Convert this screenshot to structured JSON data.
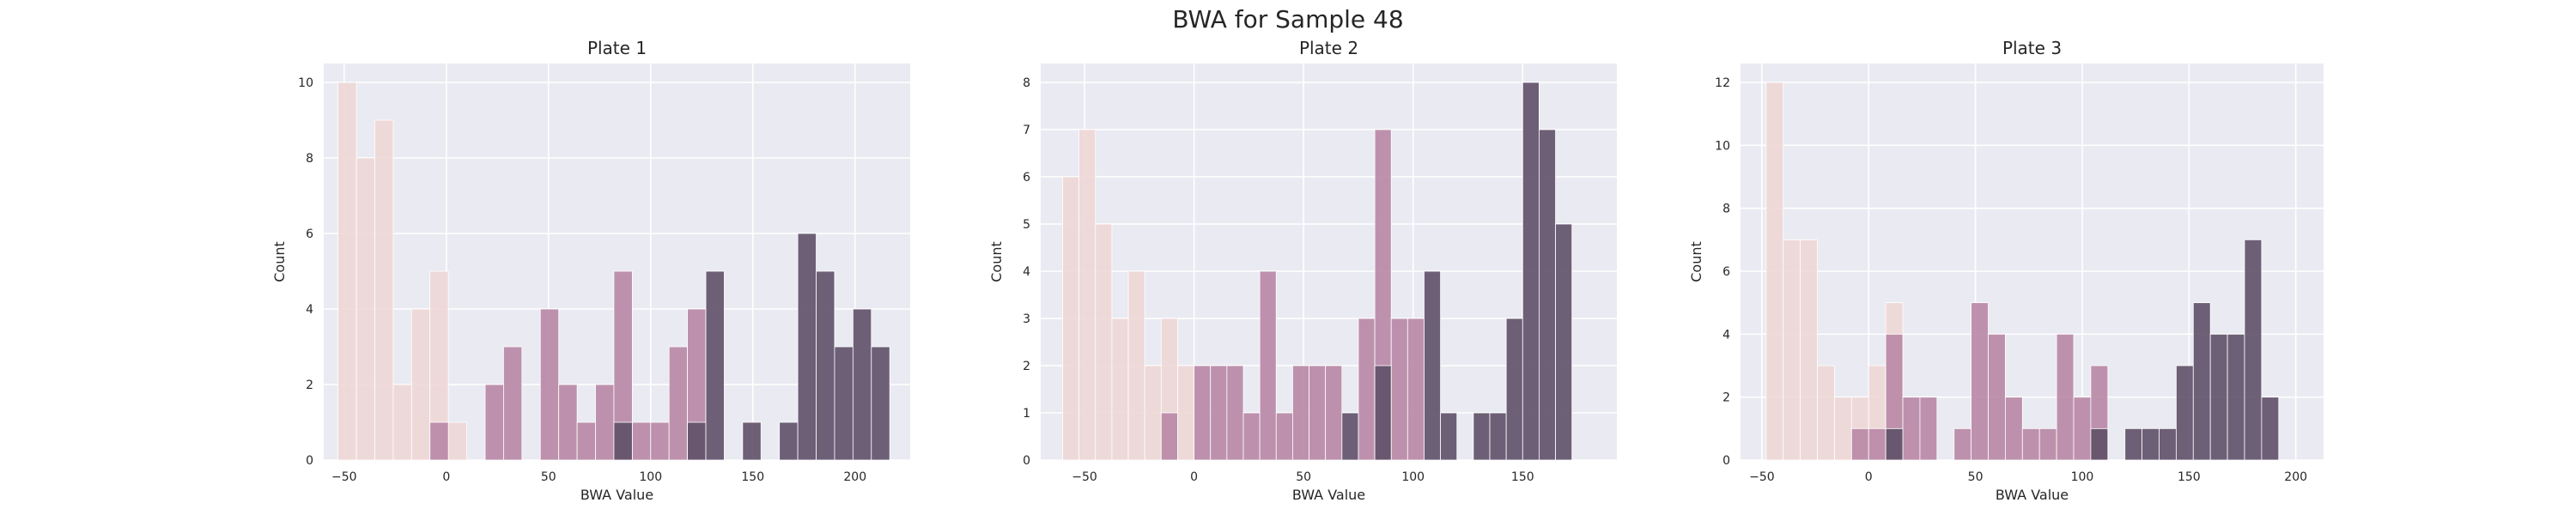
{
  "figure": {
    "suptitle": "BWA for Sample 48"
  },
  "chart_data": [
    {
      "type": "bar",
      "title": "Plate 1",
      "xlabel": "BWA Value",
      "ylabel": "Count",
      "xlim": [
        -60,
        227
      ],
      "ylim": [
        0,
        10.5
      ],
      "xticks": [
        -50,
        0,
        50,
        100,
        150,
        200
      ],
      "yticks": [
        0,
        2,
        4,
        6,
        8,
        10
      ],
      "grid": true,
      "bars": [
        {
          "x0": -53,
          "x1": -44,
          "y": 10,
          "color": "#eed7d6"
        },
        {
          "x0": -44,
          "x1": -35,
          "y": 8,
          "color": "#eed7d6"
        },
        {
          "x0": -35,
          "x1": -26,
          "y": 9,
          "color": "#eed7d6"
        },
        {
          "x0": -26,
          "x1": -17,
          "y": 2,
          "color": "#eed7d6"
        },
        {
          "x0": -17,
          "x1": -8,
          "y": 4,
          "color": "#eed7d6"
        },
        {
          "x0": -8,
          "x1": 1,
          "y": 5,
          "color": "#eed7d6"
        },
        {
          "x0": 1,
          "x1": 10,
          "y": 1,
          "color": "#eed7d6"
        },
        {
          "x0": -8,
          "x1": 1,
          "y": 1,
          "color": "#b887a5"
        },
        {
          "x0": 19,
          "x1": 28,
          "y": 2,
          "color": "#b887a5"
        },
        {
          "x0": 28,
          "x1": 37,
          "y": 3,
          "color": "#b887a5"
        },
        {
          "x0": 46,
          "x1": 55,
          "y": 4,
          "color": "#b887a5"
        },
        {
          "x0": 55,
          "x1": 64,
          "y": 2,
          "color": "#b887a5"
        },
        {
          "x0": 64,
          "x1": 73,
          "y": 1,
          "color": "#b887a5"
        },
        {
          "x0": 73,
          "x1": 82,
          "y": 2,
          "color": "#b887a5"
        },
        {
          "x0": 82,
          "x1": 91,
          "y": 5,
          "color": "#b887a5"
        },
        {
          "x0": 91,
          "x1": 100,
          "y": 1,
          "color": "#b887a5"
        },
        {
          "x0": 100,
          "x1": 109,
          "y": 1,
          "color": "#b887a5"
        },
        {
          "x0": 109,
          "x1": 118,
          "y": 3,
          "color": "#b887a5"
        },
        {
          "x0": 118,
          "x1": 127,
          "y": 4,
          "color": "#b887a5"
        },
        {
          "x0": 82,
          "x1": 91,
          "y": 1,
          "color": "#5f5068"
        },
        {
          "x0": 118,
          "x1": 127,
          "y": 1,
          "color": "#5f5068"
        },
        {
          "x0": 127,
          "x1": 136,
          "y": 5,
          "color": "#5f5068"
        },
        {
          "x0": 145,
          "x1": 154,
          "y": 1,
          "color": "#5f5068"
        },
        {
          "x0": 163,
          "x1": 172,
          "y": 1,
          "color": "#5f5068"
        },
        {
          "x0": 172,
          "x1": 181,
          "y": 6,
          "color": "#5f5068"
        },
        {
          "x0": 181,
          "x1": 190,
          "y": 5,
          "color": "#5f5068"
        },
        {
          "x0": 190,
          "x1": 199,
          "y": 3,
          "color": "#5f5068"
        },
        {
          "x0": 199,
          "x1": 208,
          "y": 4,
          "color": "#5f5068"
        },
        {
          "x0": 208,
          "x1": 217,
          "y": 3,
          "color": "#5f5068"
        }
      ]
    },
    {
      "type": "bar",
      "title": "Plate 2",
      "xlabel": "BWA Value",
      "ylabel": "Count",
      "xlim": [
        -70,
        193
      ],
      "ylim": [
        0,
        8.4
      ],
      "xticks": [
        -50,
        0,
        50,
        100,
        150
      ],
      "yticks": [
        0,
        1,
        2,
        3,
        4,
        5,
        6,
        7,
        8
      ],
      "grid": true,
      "bars": [
        {
          "x0": -60,
          "x1": -52.5,
          "y": 6,
          "color": "#eed7d6"
        },
        {
          "x0": -52.5,
          "x1": -45,
          "y": 7,
          "color": "#eed7d6"
        },
        {
          "x0": -45,
          "x1": -37.5,
          "y": 5,
          "color": "#eed7d6"
        },
        {
          "x0": -37.5,
          "x1": -30,
          "y": 3,
          "color": "#eed7d6"
        },
        {
          "x0": -30,
          "x1": -22.5,
          "y": 4,
          "color": "#eed7d6"
        },
        {
          "x0": -22.5,
          "x1": -15,
          "y": 2,
          "color": "#eed7d6"
        },
        {
          "x0": -15,
          "x1": -7.5,
          "y": 3,
          "color": "#eed7d6"
        },
        {
          "x0": -7.5,
          "x1": 0,
          "y": 2,
          "color": "#eed7d6"
        },
        {
          "x0": -15,
          "x1": -7.5,
          "y": 1,
          "color": "#b887a5"
        },
        {
          "x0": 0,
          "x1": 7.5,
          "y": 2,
          "color": "#b887a5"
        },
        {
          "x0": 7.5,
          "x1": 15,
          "y": 2,
          "color": "#b887a5"
        },
        {
          "x0": 15,
          "x1": 22.5,
          "y": 2,
          "color": "#b887a5"
        },
        {
          "x0": 22.5,
          "x1": 30,
          "y": 1,
          "color": "#b887a5"
        },
        {
          "x0": 30,
          "x1": 37.5,
          "y": 4,
          "color": "#b887a5"
        },
        {
          "x0": 37.5,
          "x1": 45,
          "y": 1,
          "color": "#b887a5"
        },
        {
          "x0": 45,
          "x1": 52.5,
          "y": 2,
          "color": "#b887a5"
        },
        {
          "x0": 52.5,
          "x1": 60,
          "y": 2,
          "color": "#b887a5"
        },
        {
          "x0": 60,
          "x1": 67.5,
          "y": 2,
          "color": "#b887a5"
        },
        {
          "x0": 75,
          "x1": 82.5,
          "y": 3,
          "color": "#b887a5"
        },
        {
          "x0": 82.5,
          "x1": 90,
          "y": 7,
          "color": "#b887a5"
        },
        {
          "x0": 90,
          "x1": 97.5,
          "y": 3,
          "color": "#b887a5"
        },
        {
          "x0": 97.5,
          "x1": 105,
          "y": 3,
          "color": "#b887a5"
        },
        {
          "x0": 67.5,
          "x1": 75,
          "y": 1,
          "color": "#5f5068"
        },
        {
          "x0": 82.5,
          "x1": 90,
          "y": 2,
          "color": "#5f5068"
        },
        {
          "x0": 105,
          "x1": 112.5,
          "y": 4,
          "color": "#5f5068"
        },
        {
          "x0": 112.5,
          "x1": 120,
          "y": 1,
          "color": "#5f5068"
        },
        {
          "x0": 127.5,
          "x1": 135,
          "y": 1,
          "color": "#5f5068"
        },
        {
          "x0": 135,
          "x1": 142.5,
          "y": 1,
          "color": "#5f5068"
        },
        {
          "x0": 142.5,
          "x1": 150,
          "y": 3,
          "color": "#5f5068"
        },
        {
          "x0": 150,
          "x1": 157.5,
          "y": 8,
          "color": "#5f5068"
        },
        {
          "x0": 157.5,
          "x1": 165,
          "y": 7,
          "color": "#5f5068"
        },
        {
          "x0": 165,
          "x1": 172.5,
          "y": 5,
          "color": "#5f5068"
        }
      ]
    },
    {
      "type": "bar",
      "title": "Plate 3",
      "xlabel": "BWA Value",
      "ylabel": "Count",
      "xlim": [
        -60,
        213
      ],
      "ylim": [
        0,
        12.6
      ],
      "xticks": [
        -50,
        0,
        50,
        100,
        150,
        200
      ],
      "yticks": [
        0,
        2,
        4,
        6,
        8,
        10,
        12
      ],
      "grid": true,
      "bars": [
        {
          "x0": -48,
          "x1": -40,
          "y": 12,
          "color": "#eed7d6"
        },
        {
          "x0": -40,
          "x1": -32,
          "y": 7,
          "color": "#eed7d6"
        },
        {
          "x0": -32,
          "x1": -24,
          "y": 7,
          "color": "#eed7d6"
        },
        {
          "x0": -24,
          "x1": -16,
          "y": 3,
          "color": "#eed7d6"
        },
        {
          "x0": -16,
          "x1": -8,
          "y": 2,
          "color": "#eed7d6"
        },
        {
          "x0": -8,
          "x1": 0,
          "y": 2,
          "color": "#eed7d6"
        },
        {
          "x0": 0,
          "x1": 8,
          "y": 3,
          "color": "#eed7d6"
        },
        {
          "x0": 8,
          "x1": 16,
          "y": 5,
          "color": "#eed7d6"
        },
        {
          "x0": 16,
          "x1": 24,
          "y": 1,
          "color": "#eed7d6"
        },
        {
          "x0": -8,
          "x1": 0,
          "y": 1,
          "color": "#b887a5"
        },
        {
          "x0": 0,
          "x1": 8,
          "y": 1,
          "color": "#b887a5"
        },
        {
          "x0": 8,
          "x1": 16,
          "y": 4,
          "color": "#b887a5"
        },
        {
          "x0": 16,
          "x1": 24,
          "y": 2,
          "color": "#b887a5"
        },
        {
          "x0": 24,
          "x1": 32,
          "y": 2,
          "color": "#b887a5"
        },
        {
          "x0": 40,
          "x1": 48,
          "y": 1,
          "color": "#b887a5"
        },
        {
          "x0": 48,
          "x1": 56,
          "y": 5,
          "color": "#b887a5"
        },
        {
          "x0": 56,
          "x1": 64,
          "y": 4,
          "color": "#b887a5"
        },
        {
          "x0": 64,
          "x1": 72,
          "y": 2,
          "color": "#b887a5"
        },
        {
          "x0": 72,
          "x1": 80,
          "y": 1,
          "color": "#b887a5"
        },
        {
          "x0": 80,
          "x1": 88,
          "y": 1,
          "color": "#b887a5"
        },
        {
          "x0": 88,
          "x1": 96,
          "y": 4,
          "color": "#b887a5"
        },
        {
          "x0": 96,
          "x1": 104,
          "y": 2,
          "color": "#b887a5"
        },
        {
          "x0": 104,
          "x1": 112,
          "y": 3,
          "color": "#b887a5"
        },
        {
          "x0": 8,
          "x1": 16,
          "y": 1,
          "color": "#5f5068"
        },
        {
          "x0": 104,
          "x1": 112,
          "y": 1,
          "color": "#5f5068"
        },
        {
          "x0": 120,
          "x1": 128,
          "y": 1,
          "color": "#5f5068"
        },
        {
          "x0": 128,
          "x1": 136,
          "y": 1,
          "color": "#5f5068"
        },
        {
          "x0": 136,
          "x1": 144,
          "y": 1,
          "color": "#5f5068"
        },
        {
          "x0": 144,
          "x1": 152,
          "y": 3,
          "color": "#5f5068"
        },
        {
          "x0": 152,
          "x1": 160,
          "y": 5,
          "color": "#5f5068"
        },
        {
          "x0": 160,
          "x1": 168,
          "y": 4,
          "color": "#5f5068"
        },
        {
          "x0": 168,
          "x1": 176,
          "y": 4,
          "color": "#5f5068"
        },
        {
          "x0": 176,
          "x1": 184,
          "y": 7,
          "color": "#5f5068"
        },
        {
          "x0": 184,
          "x1": 192,
          "y": 2,
          "color": "#5f5068"
        }
      ]
    }
  ]
}
